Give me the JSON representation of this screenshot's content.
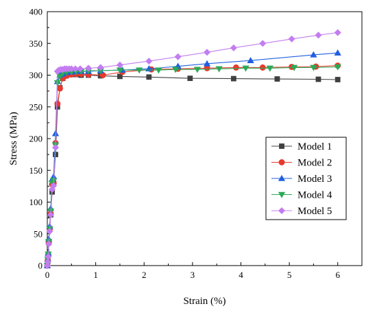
{
  "chart_data": {
    "type": "line",
    "title": "",
    "xlabel": "Strain (%)",
    "ylabel": "Stress (MPa)",
    "xlim": [
      0,
      6.5
    ],
    "ylim": [
      0,
      400
    ],
    "xticks": [
      0,
      1,
      2,
      3,
      4,
      5,
      6
    ],
    "yticks": [
      0,
      50,
      100,
      150,
      200,
      250,
      300,
      350,
      400
    ],
    "grid": false,
    "legend_position": "right",
    "series": [
      {
        "name": "Model 1",
        "color": "#404040",
        "marker": "square",
        "x": [
          0,
          0.01,
          0.02,
          0.03,
          0.05,
          0.07,
          0.1,
          0.13,
          0.17,
          0.21,
          0.26,
          0.32,
          0.4,
          0.5,
          0.6,
          0.7,
          0.85,
          1.1,
          1.5,
          2.1,
          2.95,
          3.85,
          4.75,
          5.6,
          6.0
        ],
        "y": [
          0,
          8,
          16,
          36,
          58,
          80,
          116,
          130,
          175,
          250,
          280,
          295,
          300,
          301,
          301,
          300,
          300,
          299,
          298,
          297,
          295,
          294.5,
          294,
          293.5,
          293
        ]
      },
      {
        "name": "Model 2",
        "color": "#e8392e",
        "marker": "circle",
        "x": [
          0,
          0.01,
          0.02,
          0.03,
          0.05,
          0.07,
          0.1,
          0.13,
          0.17,
          0.21,
          0.26,
          0.32,
          0.4,
          0.5,
          0.6,
          0.7,
          0.85,
          1.15,
          1.55,
          2.15,
          2.7,
          3.3,
          3.9,
          4.45,
          5.05,
          5.55,
          6.0
        ],
        "y": [
          0,
          8,
          16,
          36,
          58,
          82,
          128,
          130,
          193,
          255,
          279,
          295,
          299,
          301,
          302,
          302,
          301,
          300,
          305,
          309,
          310,
          311,
          312,
          312,
          313,
          313.5,
          315
        ]
      },
      {
        "name": "Model 3",
        "color": "#1f5fe0",
        "marker": "triangle-up",
        "x": [
          0,
          0.01,
          0.02,
          0.03,
          0.05,
          0.07,
          0.1,
          0.13,
          0.17,
          0.21,
          0.26,
          0.32,
          0.4,
          0.5,
          0.6,
          0.7,
          0.85,
          1.1,
          1.55,
          2.1,
          2.7,
          3.3,
          4.2,
          5.5,
          6.0
        ],
        "y": [
          0,
          10,
          20,
          42,
          62,
          90,
          136,
          140,
          208,
          290,
          300,
          302,
          304,
          305,
          306,
          306,
          306,
          307,
          308,
          310,
          314,
          318,
          323,
          332,
          335
        ]
      },
      {
        "name": "Model 4",
        "color": "#2aaa57",
        "marker": "triangle-down",
        "x": [
          0,
          0.01,
          0.02,
          0.03,
          0.05,
          0.07,
          0.1,
          0.13,
          0.17,
          0.21,
          0.26,
          0.32,
          0.4,
          0.5,
          0.6,
          0.7,
          0.85,
          1.1,
          1.5,
          1.9,
          2.3,
          2.65,
          3.1,
          3.55,
          4.1,
          4.6,
          5.1,
          5.5,
          6.0
        ],
        "y": [
          0,
          10,
          18,
          38,
          58,
          86,
          130,
          134,
          190,
          288,
          298,
          303,
          305,
          305,
          306,
          306,
          307,
          307,
          308,
          308,
          308,
          309,
          309,
          310,
          311,
          311,
          312,
          312,
          313
        ]
      },
      {
        "name": "Model 5",
        "color": "#c37df0",
        "marker": "diamond",
        "x": [
          0,
          0.01,
          0.02,
          0.03,
          0.05,
          0.07,
          0.1,
          0.13,
          0.17,
          0.21,
          0.24,
          0.28,
          0.32,
          0.36,
          0.4,
          0.45,
          0.5,
          0.58,
          0.68,
          0.85,
          1.1,
          1.5,
          2.1,
          2.7,
          3.3,
          3.85,
          4.45,
          5.05,
          5.6,
          6.0
        ],
        "y": [
          0,
          6,
          14,
          34,
          54,
          80,
          120,
          126,
          186,
          306,
          308,
          309,
          309,
          310,
          310,
          310,
          310,
          310,
          310,
          311,
          312,
          316,
          322,
          329,
          336,
          343,
          350,
          357,
          363,
          367
        ]
      }
    ]
  }
}
